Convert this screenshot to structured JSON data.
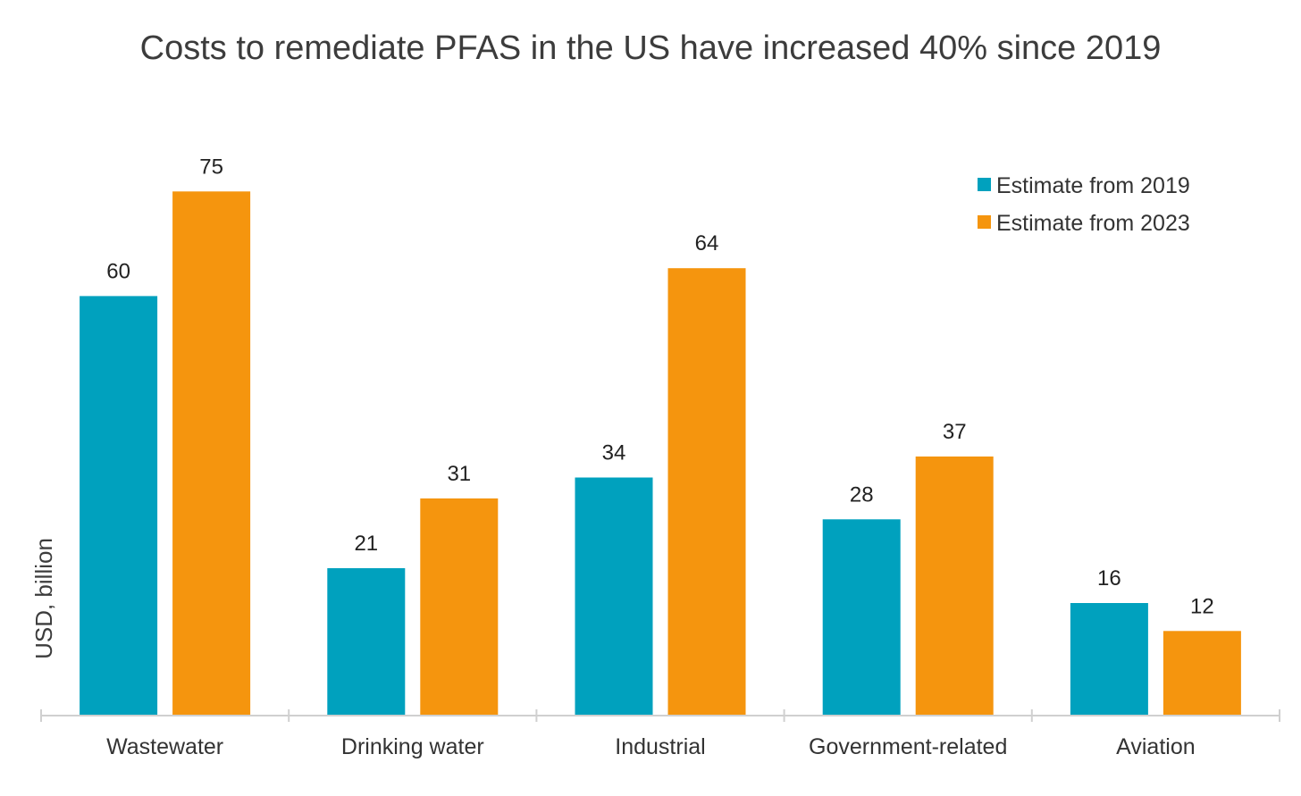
{
  "chart_data": {
    "type": "bar",
    "title": "Costs to remediate PFAS in the US have increased 40% since 2019",
    "xlabel": "",
    "ylabel": "USD, billion",
    "categories": [
      "Wastewater",
      "Drinking water",
      "Industrial",
      "Government-related",
      "Aviation"
    ],
    "series": [
      {
        "name": "Estimate from 2019",
        "color": "#00a1be",
        "values": [
          60,
          21,
          34,
          28,
          16
        ]
      },
      {
        "name": "Estimate from 2023",
        "color": "#f5950e",
        "values": [
          75,
          31,
          64,
          37,
          12
        ]
      }
    ],
    "ylim": [
      0,
      80
    ],
    "grid": false,
    "legend_position": "top-right",
    "axis_color": "#d0d0d0"
  }
}
